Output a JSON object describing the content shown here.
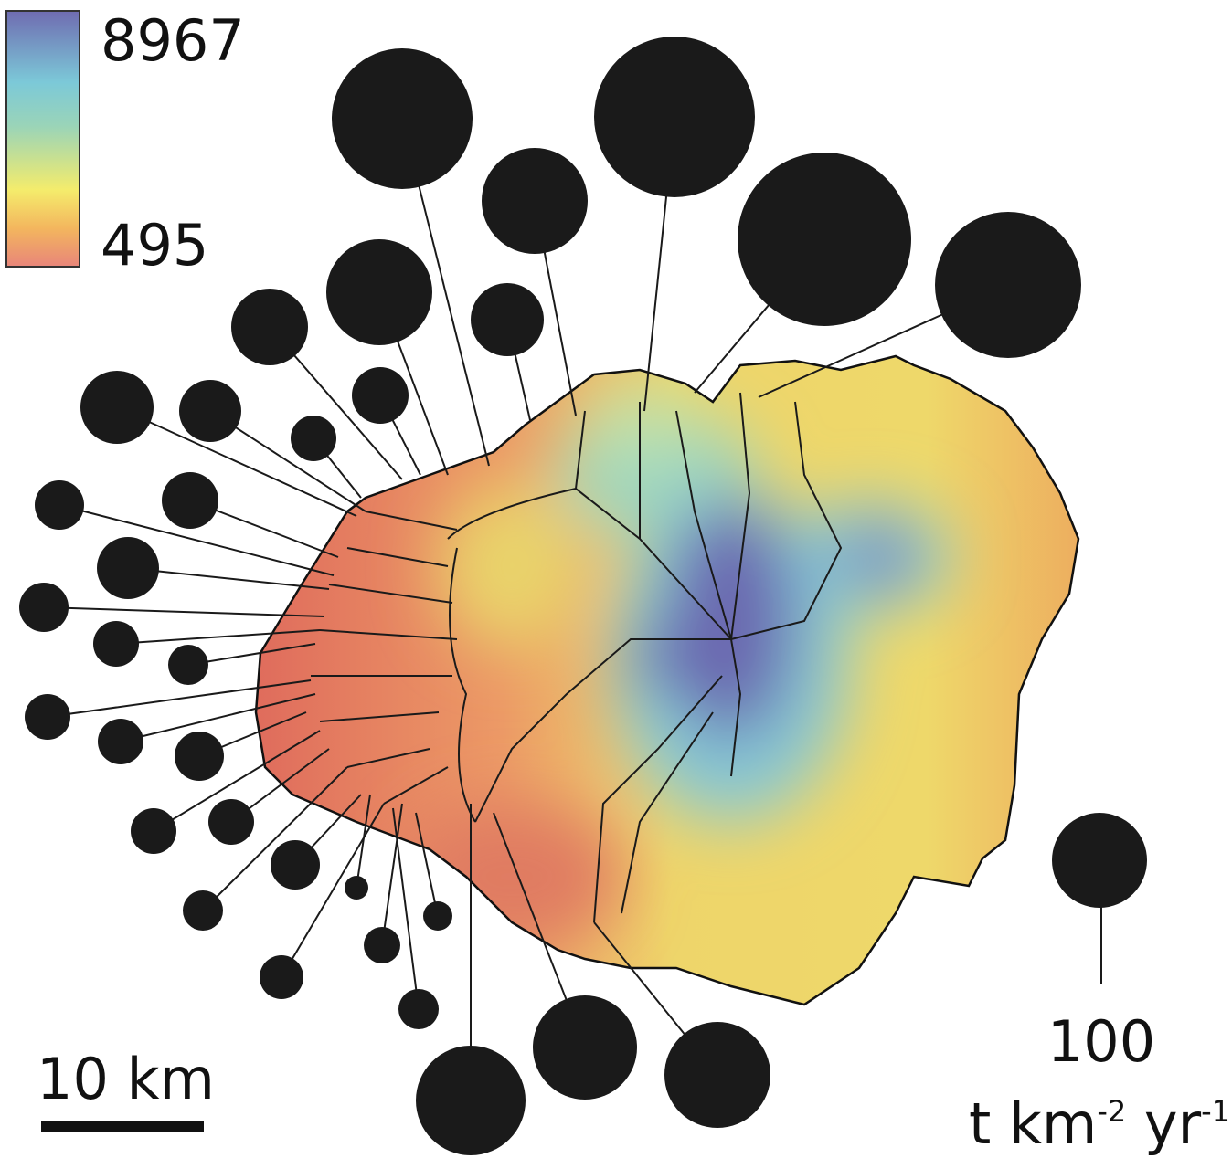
{
  "legend": {
    "max": "8967",
    "min": "495"
  },
  "scale_bar": {
    "label": "10 km"
  },
  "size_key": {
    "value": "100",
    "unit": {
      "base": "t km",
      "exp1": "-2",
      "mid": " yr",
      "exp2": "-1"
    }
  }
}
